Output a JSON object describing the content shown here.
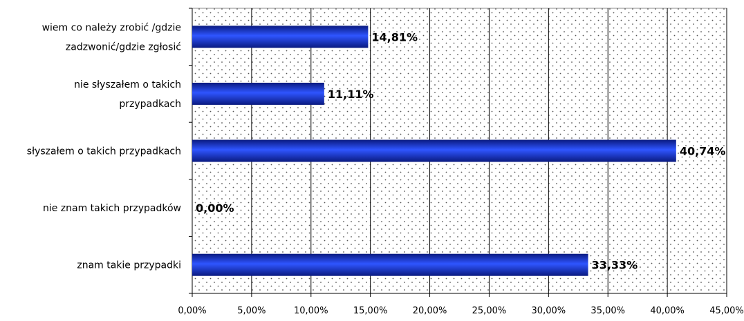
{
  "chart_data": {
    "type": "bar",
    "orientation": "horizontal",
    "categories": [
      [
        "wiem co należy zrobić /gdzie",
        "zadzwonić/gdzie zgłosić"
      ],
      [
        "nie słyszałem o takich",
        "przypadkach"
      ],
      [
        "słyszałem o takich przypadkach"
      ],
      [
        "nie znam takich przypadków"
      ],
      [
        "znam takie przypadki"
      ]
    ],
    "values": [
      14.81,
      11.11,
      40.74,
      0.0,
      33.33
    ],
    "data_labels": [
      "14,81%",
      "11,11%",
      "40,74%",
      "0,00%",
      "33,33%"
    ],
    "xlim": [
      0,
      45
    ],
    "x_ticks": [
      0,
      5,
      10,
      15,
      20,
      25,
      30,
      35,
      40,
      45
    ],
    "x_tick_labels": [
      "0,00%",
      "5,00%",
      "10,00%",
      "15,00%",
      "20,00%",
      "25,00%",
      "30,00%",
      "35,00%",
      "40,00%",
      "45,00%"
    ],
    "grid": "vertical",
    "bar_color": "#1f3fd8",
    "legend": "none"
  }
}
